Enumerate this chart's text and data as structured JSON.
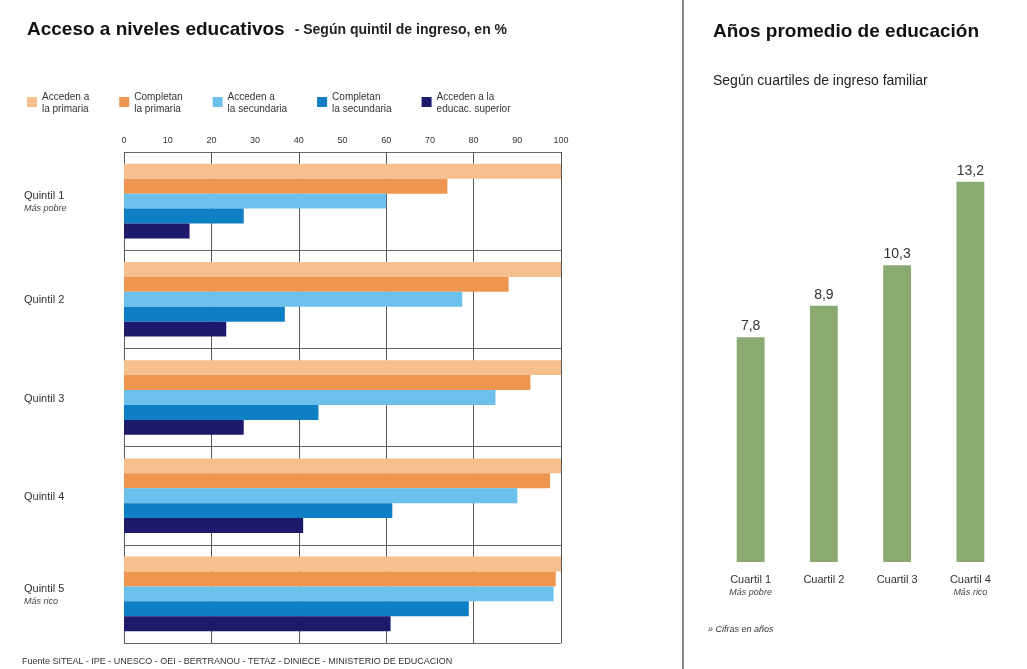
{
  "chart_data": [
    {
      "type": "bar",
      "orientation": "horizontal",
      "title": "Acceso a niveles educativos",
      "subtitle": "- Según quintil de ingreso, en %",
      "categories": [
        "Quintil 1\nMás pobre",
        "Quintil 2",
        "Quintil 3",
        "Quintil 4",
        "Quintil 5\nMás rico"
      ],
      "series": [
        {
          "name": "Acceden a\nla primaria",
          "color": "#f5c08e",
          "values": [
            100,
            100,
            100,
            100,
            100
          ]
        },
        {
          "name": "Completan\nla primaria",
          "color": "#ee9550",
          "values": [
            74,
            88,
            93,
            97.5,
            98.8
          ]
        },
        {
          "name": "Acceden a\nla secundaria",
          "color": "#6cc0ec",
          "values": [
            60,
            77.4,
            85,
            90,
            98.3
          ]
        },
        {
          "name": "Completan\nla secundaria",
          "color": "#0e7fc4",
          "values": [
            27.4,
            36.8,
            44.5,
            61.4,
            78.9
          ]
        },
        {
          "name": "Acceden a la\neducac. superior",
          "color": "#1e1a6b",
          "values": [
            15,
            23.4,
            27.4,
            41,
            61
          ]
        }
      ],
      "xlim": [
        0,
        100
      ],
      "xticks": [
        0,
        10,
        20,
        30,
        40,
        50,
        60,
        70,
        80,
        90,
        100
      ],
      "grid": true,
      "legend": "top",
      "annotations": [
        "Fuente SITEAL - IPE - UNESCO - OEI - BERTRANOU - TETAZ - DINIECE - MINISTERIO DE EDUCACION"
      ]
    },
    {
      "type": "bar",
      "title": "Años promedio de educación",
      "subtitle": "Según cuartiles de ingreso familiar",
      "categories": [
        "Cuartil 1\nMás pobre",
        "Cuartil 2",
        "Cuartil 3",
        "Cuartil 4\nMás rico"
      ],
      "values": [
        7.8,
        8.9,
        10.3,
        13.2
      ],
      "color": "#8aaa72",
      "value_labels": [
        "7,8",
        "8,9",
        "10,3",
        "13,2"
      ],
      "annotations": [
        "» Cifras en años"
      ]
    }
  ]
}
